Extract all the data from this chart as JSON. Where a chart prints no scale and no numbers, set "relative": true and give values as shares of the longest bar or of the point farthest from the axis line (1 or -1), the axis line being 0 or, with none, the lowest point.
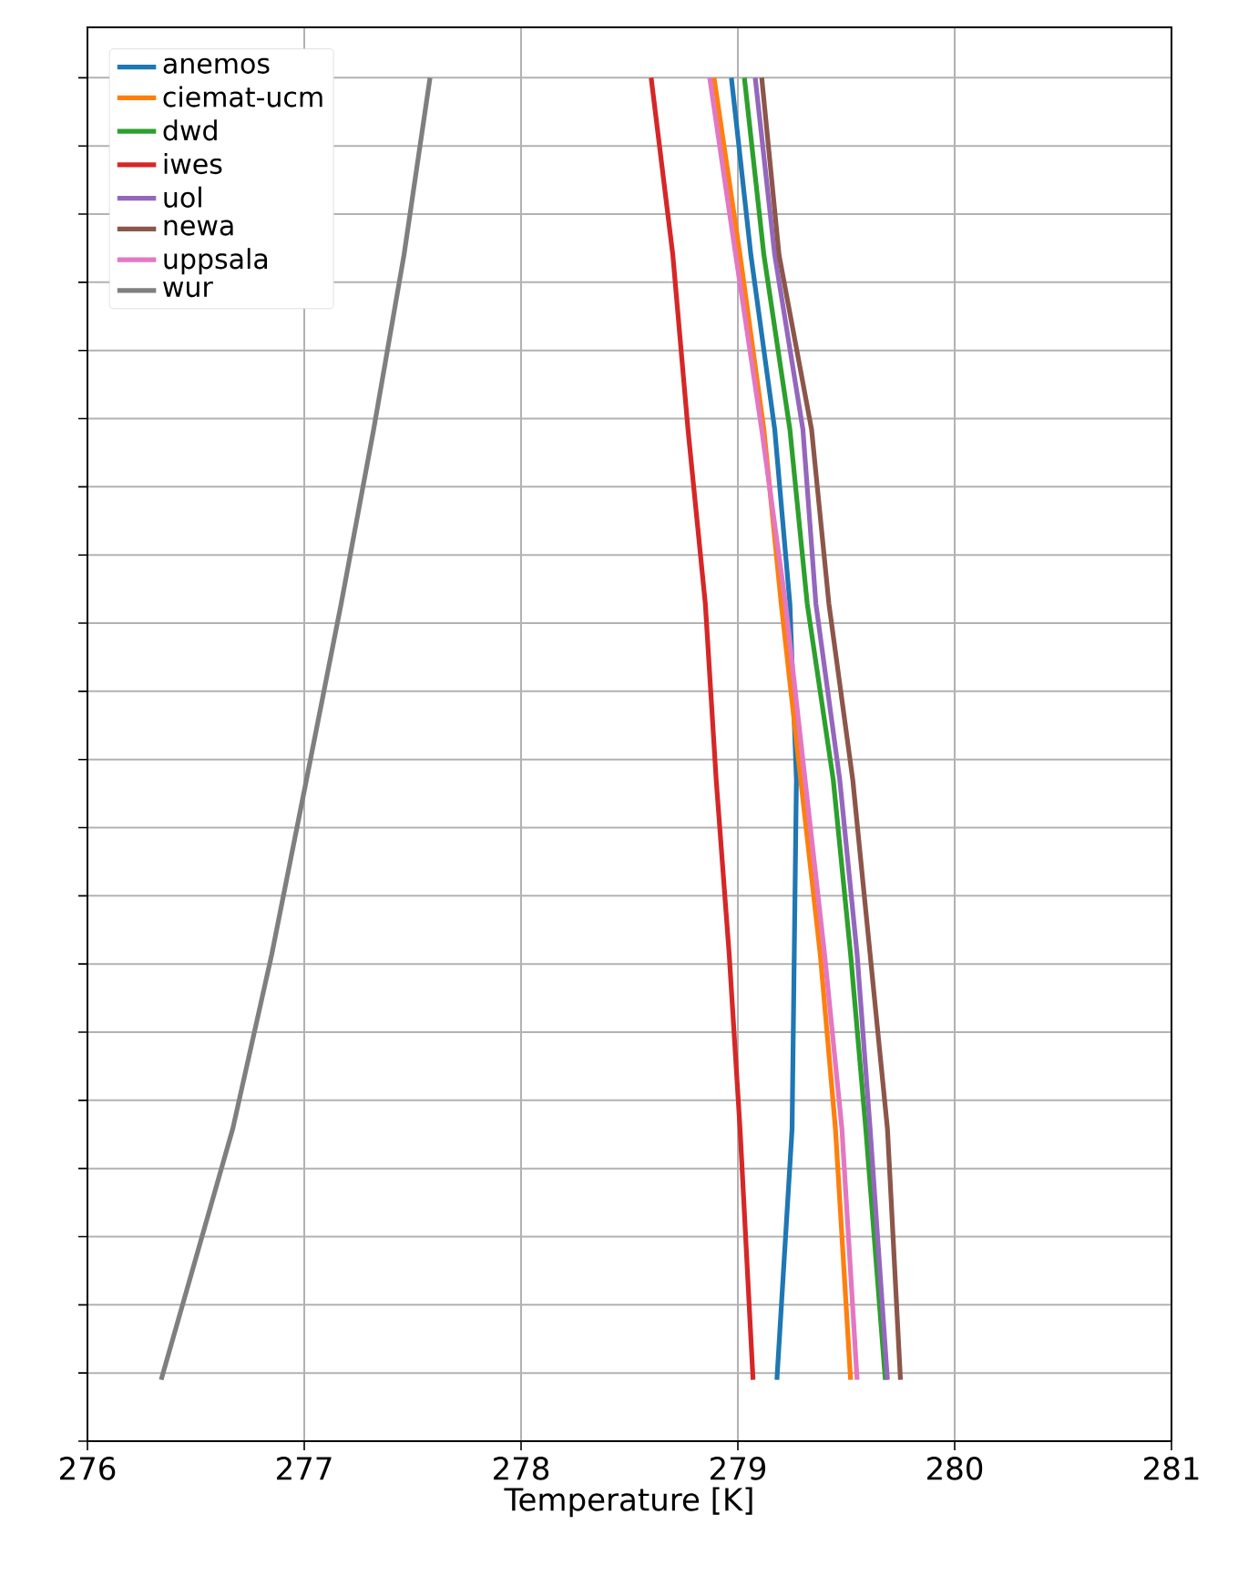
{
  "chart_data": {
    "type": "line",
    "relative": true,
    "xlabel": "Temperature [K]",
    "xlim": [
      276,
      281
    ],
    "xticks": [
      276,
      277,
      278,
      279,
      280,
      281
    ],
    "grid": true,
    "legend": "top left",
    "series": [
      {
        "name": "anemos",
        "color": "#1f77b4",
        "x": [
          279.18,
          279.25,
          279.26,
          279.27,
          279.24,
          279.17,
          279.06,
          278.97
        ],
        "values": [
          0.045,
          0.229,
          0.357,
          0.485,
          0.614,
          0.742,
          0.87,
          1
        ]
      },
      {
        "name": "ciemat-ucm",
        "color": "#ff7f0e",
        "x": [
          279.52,
          279.45,
          279.38,
          279.29,
          279.2,
          279.12,
          279.01,
          278.89
        ],
        "values": [
          0.045,
          0.229,
          0.357,
          0.485,
          0.614,
          0.742,
          0.87,
          1
        ]
      },
      {
        "name": "dwd",
        "color": "#2ca02c",
        "x": [
          279.68,
          279.59,
          279.52,
          279.44,
          279.32,
          279.24,
          279.12,
          279.03
        ],
        "values": [
          0.045,
          0.229,
          0.357,
          0.485,
          0.614,
          0.742,
          0.87,
          1
        ]
      },
      {
        "name": "iwes",
        "color": "#d62728",
        "x": [
          279.07,
          279.01,
          278.96,
          278.9,
          278.85,
          278.77,
          278.7,
          278.6
        ],
        "values": [
          0.045,
          0.229,
          0.357,
          0.485,
          0.614,
          0.742,
          0.87,
          1
        ]
      },
      {
        "name": "uol",
        "color": "#9467bd",
        "x": [
          279.69,
          279.61,
          279.55,
          279.47,
          279.36,
          279.3,
          279.17,
          279.08
        ],
        "values": [
          0.045,
          0.229,
          0.357,
          0.485,
          0.614,
          0.742,
          0.87,
          1
        ]
      },
      {
        "name": "newa",
        "color": "#8c564b",
        "x": [
          279.75,
          279.69,
          279.61,
          279.53,
          279.42,
          279.34,
          279.19,
          279.11
        ],
        "values": [
          0.045,
          0.229,
          0.357,
          0.485,
          0.614,
          0.742,
          0.87,
          1
        ]
      },
      {
        "name": "uppsala",
        "color": "#e377c2",
        "x": [
          279.55,
          279.48,
          279.4,
          279.31,
          279.22,
          279.11,
          278.99,
          278.87
        ],
        "values": [
          0.045,
          0.229,
          0.357,
          0.485,
          0.614,
          0.742,
          0.87,
          1
        ]
      },
      {
        "name": "wur",
        "color": "#7f7f7f",
        "x": [
          276.34,
          276.67,
          276.85,
          277.01,
          277.17,
          277.32,
          277.46,
          277.58
        ],
        "values": [
          0.045,
          0.229,
          0.357,
          0.485,
          0.614,
          0.742,
          0.87,
          1
        ]
      }
    ]
  }
}
